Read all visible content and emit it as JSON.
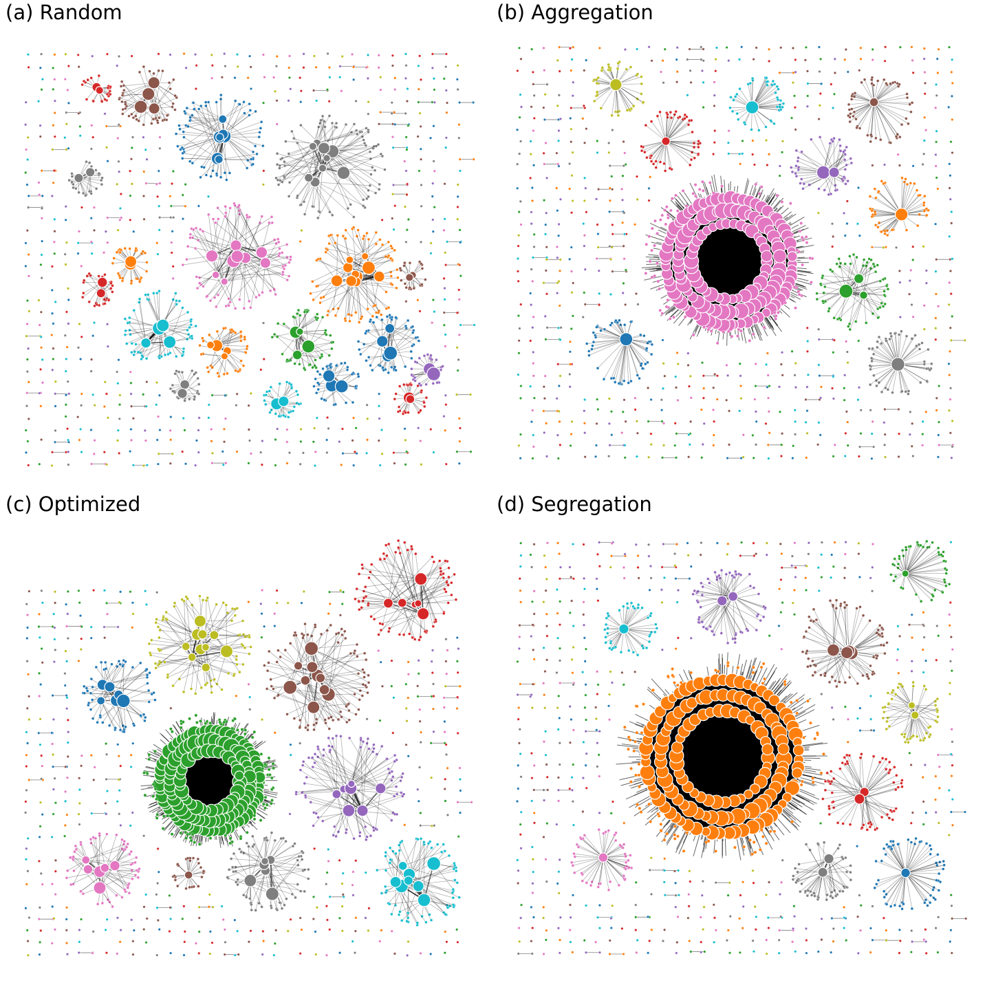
{
  "panels": [
    {
      "title": "(a) Random"
    },
    {
      "title": "(b) Aggregation"
    },
    {
      "title": "(c) Optimized"
    },
    {
      "title": "(d) Segregation"
    }
  ]
}
